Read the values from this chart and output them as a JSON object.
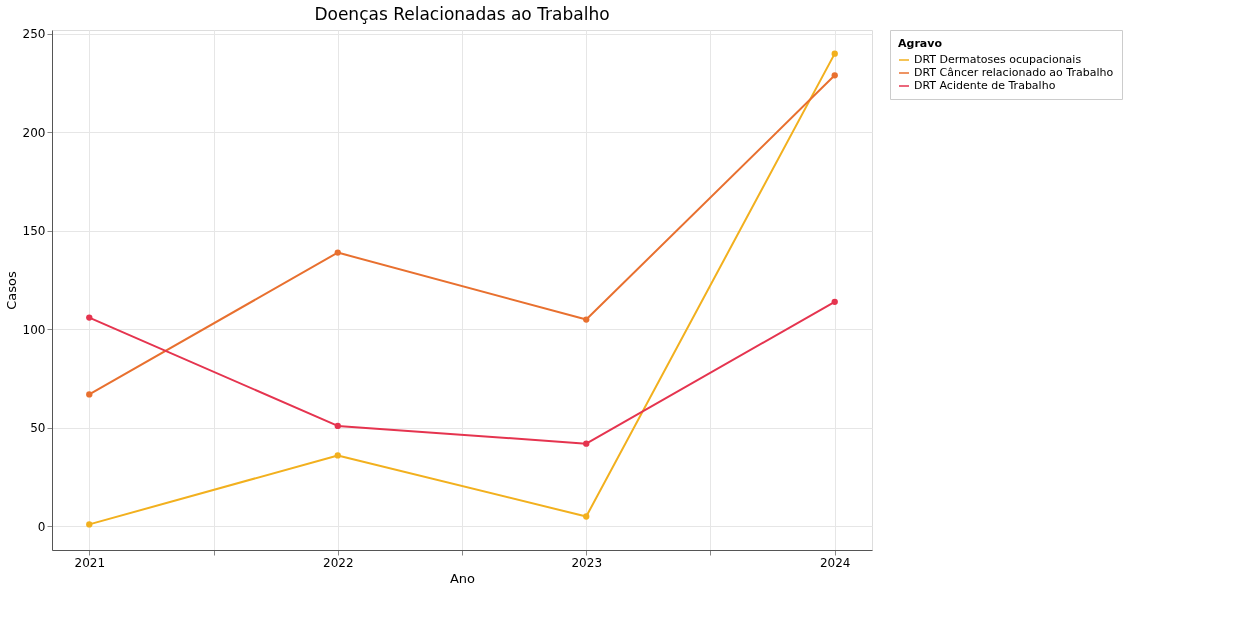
{
  "chart_data": {
    "type": "line",
    "title": "Doenças Relacionadas ao Trabalho",
    "xlabel": "Ano",
    "ylabel": "Casos",
    "legend_title": "Agravo",
    "x": [
      2021,
      2022,
      2023,
      2024
    ],
    "series": [
      {
        "name": "DRT Dermatoses ocupacionais",
        "color": "#f2b01e",
        "values": [
          1,
          36,
          5,
          240
        ]
      },
      {
        "name": "DRT Câncer relacionado ao Trabalho",
        "color": "#e8702f",
        "values": [
          67,
          139,
          105,
          229
        ]
      },
      {
        "name": "DRT Acidente de Trabalho",
        "color": "#e5344f",
        "values": [
          106,
          51,
          42,
          114
        ]
      }
    ],
    "xlim": [
      2020.85,
      2024.15
    ],
    "xticks": [
      2021,
      {
        "value": 2021.5,
        "label": null
      },
      2022,
      {
        "value": 2022.5,
        "label": null
      },
      2023,
      {
        "value": 2023.5,
        "label": null
      },
      2024
    ],
    "ylim": [
      -12,
      252
    ],
    "yticks": [
      0,
      50,
      100,
      150,
      200,
      250
    ],
    "grid": true,
    "legend": "right",
    "marker": "circle",
    "line_style": "solid"
  }
}
